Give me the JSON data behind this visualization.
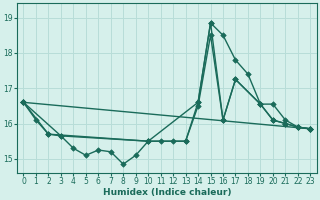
{
  "xlabel": "Humidex (Indice chaleur)",
  "bg_color": "#d6f0eb",
  "line_color": "#1a6b5a",
  "grid_color": "#b8ddd8",
  "xlim": [
    -0.5,
    23.5
  ],
  "ylim": [
    14.6,
    19.4
  ],
  "yticks": [
    15,
    16,
    17,
    18,
    19
  ],
  "xticks": [
    0,
    1,
    2,
    3,
    4,
    5,
    6,
    7,
    8,
    9,
    10,
    11,
    12,
    13,
    14,
    15,
    16,
    17,
    18,
    19,
    20,
    21,
    22,
    23
  ],
  "lines": [
    {
      "x": [
        0,
        1,
        2,
        3,
        4,
        5,
        6,
        7,
        8,
        9,
        10,
        11,
        12,
        13,
        14,
        15,
        16,
        17,
        18,
        19,
        20,
        21,
        22,
        23
      ],
      "y": [
        16.6,
        16.1,
        15.7,
        15.65,
        15.3,
        15.1,
        15.25,
        15.2,
        14.85,
        15.1,
        15.5,
        15.5,
        15.5,
        15.5,
        16.6,
        18.85,
        18.5,
        17.8,
        17.4,
        16.55,
        16.1,
        16.0,
        15.9,
        15.85
      ]
    },
    {
      "x": [
        0,
        23
      ],
      "y": [
        16.6,
        15.85
      ]
    },
    {
      "x": [
        0,
        2,
        10,
        13,
        14,
        15,
        16,
        17,
        19,
        20,
        21,
        22,
        23
      ],
      "y": [
        16.6,
        15.7,
        15.5,
        15.5,
        16.5,
        18.5,
        16.1,
        17.25,
        16.55,
        16.55,
        16.1,
        15.9,
        15.85
      ]
    },
    {
      "x": [
        0,
        3,
        10,
        14,
        15,
        16,
        17,
        19,
        20,
        21,
        22,
        23
      ],
      "y": [
        16.6,
        15.65,
        15.5,
        16.6,
        18.85,
        16.1,
        17.25,
        16.55,
        16.1,
        16.0,
        15.9,
        15.85
      ]
    }
  ],
  "marker": "D",
  "markersize": 2.8,
  "linewidth": 1.0
}
